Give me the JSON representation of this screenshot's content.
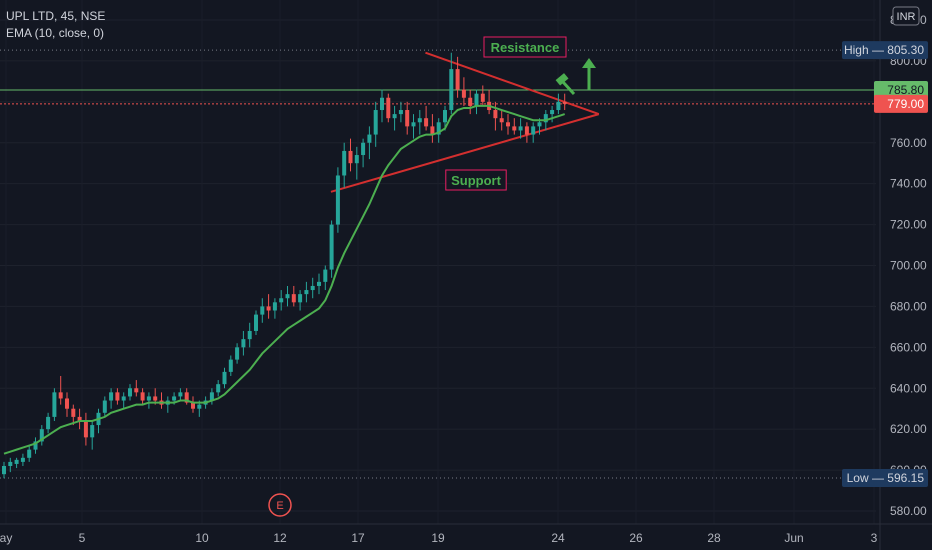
{
  "header": {
    "symbol_line": "UPL LTD, 45, NSE",
    "indicator_line": "EMA (10, close, 0)"
  },
  "currency_badge": "INR",
  "colors": {
    "background": "#131722",
    "axis_text": "#b2b5be",
    "up_candle": "#26a69a",
    "down_candle": "#ef5350",
    "ema_line": "#4caf50",
    "triangle": "#d32f2f",
    "resistance_line": "#66bb6a",
    "current_price_line": "#ef5350",
    "label_box": "#1e3a5f"
  },
  "chart_data": {
    "type": "candlestick",
    "title": "UPL LTD, 45, NSE",
    "indicator": "EMA (10, close, 0)",
    "y_axis": {
      "ylim": [
        575,
        820
      ],
      "ticks": [
        580,
        600,
        620,
        640,
        660,
        680,
        700,
        720,
        740,
        760,
        780,
        800,
        820
      ],
      "tick_labels": [
        "580.00",
        "600.00",
        "620.00",
        "640.00",
        "660.00",
        "680.00",
        "700.00",
        "720.00",
        "740.00",
        "760.00",
        "780.00",
        "800.00",
        "820.00"
      ]
    },
    "x_axis": {
      "tick_labels": [
        "ay",
        "5",
        "10",
        "12",
        "17",
        "19",
        "24",
        "26",
        "28",
        "Jun",
        "3"
      ]
    },
    "markers": {
      "high": {
        "label": "High",
        "value": "805.30"
      },
      "low": {
        "label": "Low",
        "value": "596.15"
      },
      "resistance_level": "785.80",
      "last_price": "779.00"
    },
    "annotations": {
      "resistance": "Resistance",
      "support": "Support",
      "earnings": "E"
    },
    "triangle": {
      "upper_line": [
        [
          0.4565,
          804
        ],
        [
          0.6425,
          774
        ]
      ],
      "lower_line": [
        [
          0.3551,
          736
        ],
        [
          0.6425,
          774
        ]
      ]
    },
    "ohlc": [
      [
        598,
        604,
        596,
        602
      ],
      [
        602,
        606,
        599,
        604
      ],
      [
        603,
        606,
        601,
        605
      ],
      [
        604,
        608,
        602,
        606
      ],
      [
        606,
        612,
        604,
        610
      ],
      [
        610,
        616,
        608,
        614
      ],
      [
        614,
        622,
        612,
        620
      ],
      [
        620,
        628,
        618,
        626
      ],
      [
        626,
        640,
        624,
        638
      ],
      [
        638,
        646,
        632,
        635
      ],
      [
        635,
        638,
        626,
        630
      ],
      [
        630,
        632,
        622,
        626
      ],
      [
        626,
        630,
        620,
        624
      ],
      [
        624,
        628,
        612,
        616
      ],
      [
        616,
        624,
        610,
        622
      ],
      [
        622,
        630,
        618,
        628
      ],
      [
        628,
        636,
        626,
        634
      ],
      [
        634,
        640,
        630,
        638
      ],
      [
        638,
        640,
        632,
        634
      ],
      [
        634,
        638,
        630,
        636
      ],
      [
        636,
        642,
        634,
        640
      ],
      [
        640,
        644,
        636,
        638
      ],
      [
        638,
        640,
        632,
        634
      ],
      [
        634,
        638,
        630,
        636
      ],
      [
        636,
        640,
        632,
        634
      ],
      [
        634,
        638,
        630,
        632
      ],
      [
        632,
        636,
        628,
        634
      ],
      [
        634,
        638,
        632,
        636
      ],
      [
        636,
        640,
        634,
        638
      ],
      [
        638,
        640,
        632,
        633
      ],
      [
        633,
        636,
        628,
        630
      ],
      [
        630,
        634,
        626,
        632
      ],
      [
        632,
        636,
        630,
        634
      ],
      [
        634,
        640,
        632,
        638
      ],
      [
        638,
        644,
        636,
        642
      ],
      [
        642,
        650,
        640,
        648
      ],
      [
        648,
        656,
        646,
        654
      ],
      [
        654,
        662,
        652,
        660
      ],
      [
        660,
        668,
        656,
        664
      ],
      [
        664,
        672,
        660,
        668
      ],
      [
        668,
        678,
        666,
        676
      ],
      [
        676,
        684,
        672,
        680
      ],
      [
        680,
        686,
        674,
        678
      ],
      [
        678,
        684,
        674,
        682
      ],
      [
        682,
        688,
        678,
        684
      ],
      [
        684,
        690,
        680,
        686
      ],
      [
        686,
        690,
        680,
        682
      ],
      [
        682,
        688,
        678,
        686
      ],
      [
        686,
        692,
        682,
        688
      ],
      [
        688,
        694,
        684,
        690
      ],
      [
        690,
        696,
        686,
        692
      ],
      [
        692,
        700,
        688,
        698
      ],
      [
        698,
        722,
        694,
        720
      ],
      [
        720,
        748,
        716,
        744
      ],
      [
        744,
        760,
        738,
        756
      ],
      [
        756,
        762,
        746,
        750
      ],
      [
        750,
        758,
        742,
        754
      ],
      [
        754,
        762,
        748,
        760
      ],
      [
        760,
        768,
        752,
        764
      ],
      [
        764,
        780,
        758,
        776
      ],
      [
        776,
        786,
        770,
        782
      ],
      [
        782,
        784,
        770,
        772
      ],
      [
        772,
        778,
        766,
        774
      ],
      [
        774,
        780,
        770,
        776
      ],
      [
        776,
        780,
        764,
        768
      ],
      [
        768,
        774,
        762,
        770
      ],
      [
        770,
        776,
        764,
        772
      ],
      [
        772,
        778,
        766,
        768
      ],
      [
        768,
        774,
        760,
        764
      ],
      [
        764,
        772,
        760,
        770
      ],
      [
        770,
        778,
        766,
        776
      ],
      [
        776,
        804,
        774,
        796
      ],
      [
        796,
        802,
        782,
        786
      ],
      [
        786,
        792,
        778,
        782
      ],
      [
        782,
        786,
        774,
        778
      ],
      [
        778,
        786,
        774,
        784
      ],
      [
        784,
        788,
        778,
        780
      ],
      [
        780,
        786,
        774,
        776
      ],
      [
        776,
        780,
        766,
        772
      ],
      [
        772,
        776,
        766,
        770
      ],
      [
        770,
        774,
        764,
        768
      ],
      [
        768,
        772,
        764,
        766
      ],
      [
        766,
        772,
        762,
        768
      ],
      [
        768,
        770,
        760,
        764
      ],
      [
        764,
        770,
        760,
        768
      ],
      [
        768,
        772,
        764,
        770
      ],
      [
        770,
        776,
        766,
        774
      ],
      [
        774,
        778,
        770,
        776
      ],
      [
        776,
        784,
        774,
        780
      ],
      [
        780,
        784,
        776,
        779
      ]
    ],
    "ema": [
      608,
      609,
      610,
      611,
      612,
      613,
      615,
      617,
      619,
      621,
      622,
      623,
      624,
      624,
      624,
      625,
      626,
      628,
      629,
      630,
      631,
      632,
      632,
      633,
      633,
      633,
      633,
      633,
      634,
      634,
      633,
      633,
      633,
      634,
      635,
      637,
      640,
      643,
      646,
      649,
      653,
      657,
      660,
      663,
      666,
      669,
      671,
      673,
      675,
      677,
      679,
      683,
      690,
      699,
      706,
      712,
      718,
      724,
      730,
      737,
      744,
      749,
      753,
      757,
      759,
      761,
      763,
      764,
      764,
      765,
      767,
      773,
      776,
      777,
      777,
      778,
      778,
      778,
      777,
      776,
      775,
      774,
      773,
      772,
      771,
      771,
      771,
      772,
      773,
      774
    ]
  }
}
